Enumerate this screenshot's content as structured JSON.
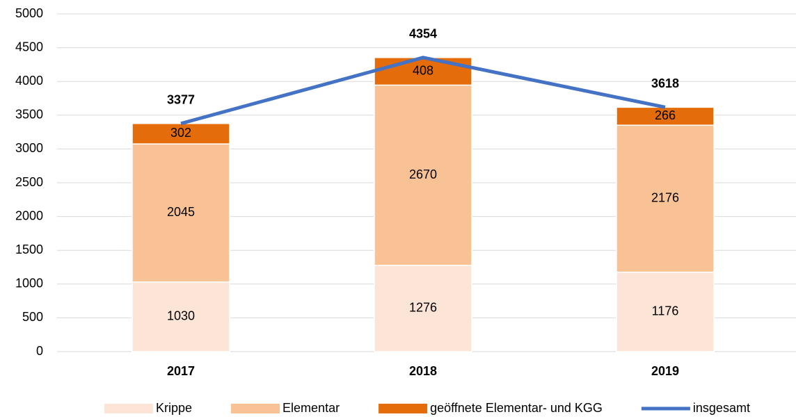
{
  "chart_data": {
    "type": "bar",
    "stacked": true,
    "categories": [
      "2017",
      "2018",
      "2019"
    ],
    "series": [
      {
        "name": "Krippe",
        "color": "#fce4d6",
        "values": [
          1030,
          1276,
          1176
        ]
      },
      {
        "name": "Elementar",
        "color": "#f9c294",
        "values": [
          2045,
          2670,
          2176
        ]
      },
      {
        "name": "geöffnete Elementar- und KGG",
        "color": "#e46c0a",
        "values": [
          302,
          408,
          266
        ]
      },
      {
        "name": "insgesamt",
        "color": "#4472c4",
        "type": "line",
        "values": [
          3377,
          4354,
          3618
        ]
      }
    ],
    "ylim": [
      0,
      5000
    ],
    "yticks": [
      0,
      500,
      1000,
      1500,
      2000,
      2500,
      3000,
      3500,
      4000,
      4500,
      5000
    ],
    "grid": true,
    "legend": "bottom"
  }
}
